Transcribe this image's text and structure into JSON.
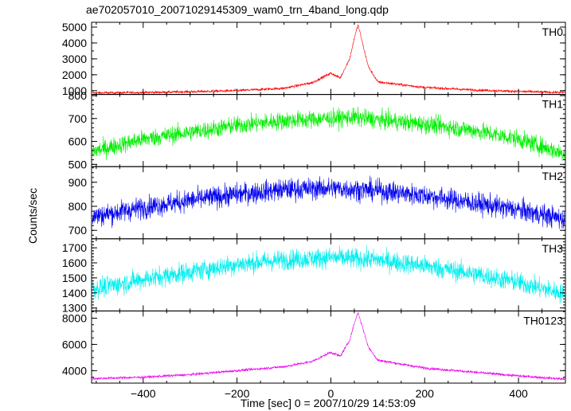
{
  "chart_data": {
    "type": "line",
    "title": "ae702057010_20071029145309_wam0_trn_4band_long.qdp",
    "xlabel": "Time [sec] 0 = 2007/10/29 14:53:09",
    "ylabel": "Counts/sec",
    "xlim": [
      -510,
      500
    ],
    "xticks": [
      -400,
      -200,
      0,
      200,
      400
    ],
    "x_minor_step": 50,
    "panels": [
      {
        "name": "TH0",
        "color": "#ff0000",
        "ylim": [
          760,
          5300
        ],
        "yticks": [
          1000,
          2000,
          3000,
          4000,
          5000
        ],
        "y_minor_step": 500,
        "noise": 60,
        "x": [
          -500,
          -400,
          -300,
          -200,
          -100,
          -40,
          0,
          20,
          40,
          50,
          58,
          65,
          80,
          100,
          200,
          300,
          400,
          500
        ],
        "y": [
          860,
          880,
          930,
          1000,
          1150,
          1500,
          2100,
          1800,
          3000,
          4300,
          5150,
          4300,
          2500,
          1550,
          1200,
          1050,
          950,
          880
        ]
      },
      {
        "name": "TH1",
        "color": "#00ee00",
        "ylim": [
          490,
          805
        ],
        "yticks": [
          500,
          600,
          700,
          800
        ],
        "y_minor_step": 20,
        "noise": 28,
        "x": [
          -500,
          -400,
          -300,
          -200,
          -100,
          0,
          50,
          100,
          200,
          300,
          400,
          500
        ],
        "y": [
          560,
          610,
          640,
          670,
          690,
          700,
          705,
          695,
          675,
          650,
          610,
          545
        ]
      },
      {
        "name": "TH2",
        "color": "#0000ee",
        "ylim": [
          665,
          965
        ],
        "yticks": [
          700,
          800,
          900
        ],
        "y_minor_step": 20,
        "noise": 32,
        "x": [
          -500,
          -400,
          -300,
          -200,
          -100,
          0,
          100,
          200,
          300,
          400,
          500
        ],
        "y": [
          760,
          795,
          825,
          850,
          870,
          875,
          865,
          845,
          815,
          785,
          745
        ]
      },
      {
        "name": "TH3",
        "color": "#00eeee",
        "ylim": [
          1280,
          1760
        ],
        "yticks": [
          1300,
          1400,
          1500,
          1600,
          1700
        ],
        "y_minor_step": 20,
        "noise": 48,
        "x": [
          -500,
          -400,
          -300,
          -200,
          -100,
          0,
          100,
          200,
          300,
          400,
          500
        ],
        "y": [
          1430,
          1490,
          1540,
          1590,
          1620,
          1635,
          1620,
          1580,
          1530,
          1470,
          1390
        ]
      },
      {
        "name": "TH0123",
        "color": "#ee00ee",
        "ylim": [
          3050,
          8550
        ],
        "yticks": [
          4000,
          6000,
          8000
        ],
        "y_minor_step": 500,
        "noise": 70,
        "x": [
          -500,
          -400,
          -300,
          -200,
          -100,
          -40,
          0,
          20,
          40,
          50,
          58,
          65,
          80,
          100,
          200,
          300,
          400,
          500
        ],
        "y": [
          3400,
          3500,
          3700,
          4000,
          4300,
          4700,
          5400,
          5100,
          6300,
          7600,
          8450,
          7600,
          5800,
          4800,
          4200,
          3900,
          3600,
          3350
        ]
      }
    ]
  }
}
